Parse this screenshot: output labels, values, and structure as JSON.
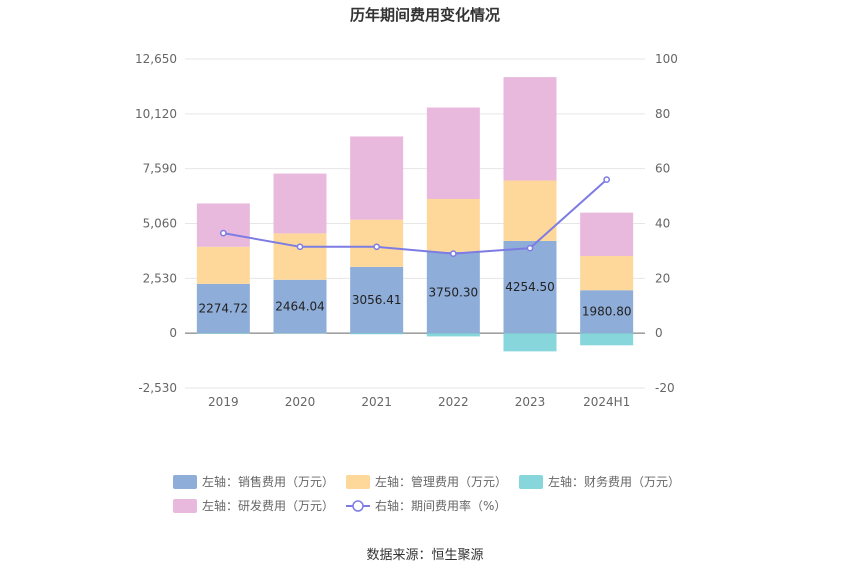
{
  "chart_data": {
    "type": "bar",
    "title": "历年期间费用变化情况",
    "categories": [
      "2019",
      "2020",
      "2021",
      "2022",
      "2023",
      "2024H1"
    ],
    "stacked": true,
    "left_axis": {
      "ylim": [
        -2530,
        12650
      ],
      "ticks": [
        "-2,530",
        "0",
        "2,530",
        "5,060",
        "7,590",
        "10,120",
        "12,650"
      ],
      "tick_values": [
        -2530,
        0,
        2530,
        5060,
        7590,
        10120,
        12650
      ]
    },
    "right_axis": {
      "ylim": [
        -20,
        100
      ],
      "ticks": [
        "-20",
        "0",
        "20",
        "40",
        "60",
        "80",
        "100"
      ],
      "tick_values": [
        -20,
        0,
        20,
        40,
        60,
        80,
        100
      ]
    },
    "series": [
      {
        "name": "左轴：销售费用（万元）",
        "axis": "left",
        "color": "#8eadd9",
        "values": [
          2274.72,
          2464.04,
          3056.41,
          3750.3,
          4254.5,
          1980.8
        ],
        "labels": [
          "2274.72",
          "2464.04",
          "3056.41",
          "3750.30",
          "4254.50",
          "1980.80"
        ]
      },
      {
        "name": "左轴：管理费用（万元）",
        "axis": "left",
        "color": "#fdd89a",
        "values": [
          1710,
          2140,
          2180,
          2440,
          2790,
          1580
        ]
      },
      {
        "name": "左轴：财务费用（万元）",
        "axis": "left",
        "color": "#86d6db",
        "values": [
          -30,
          -20,
          -50,
          -150,
          -840,
          -560
        ]
      },
      {
        "name": "左轴：研发费用（万元）",
        "axis": "left",
        "color": "#e8b9dc",
        "values": [
          2000,
          2760,
          3840,
          4220,
          4770,
          2000
        ]
      },
      {
        "name": "右轴：期间费用率（%）",
        "axis": "right",
        "type": "line",
        "color": "#7d7ce3",
        "values": [
          36.5,
          31.5,
          31.5,
          29.0,
          31.0,
          56.0
        ]
      }
    ],
    "legend_position": "bottom"
  },
  "source": "数据来源：恒生聚源"
}
